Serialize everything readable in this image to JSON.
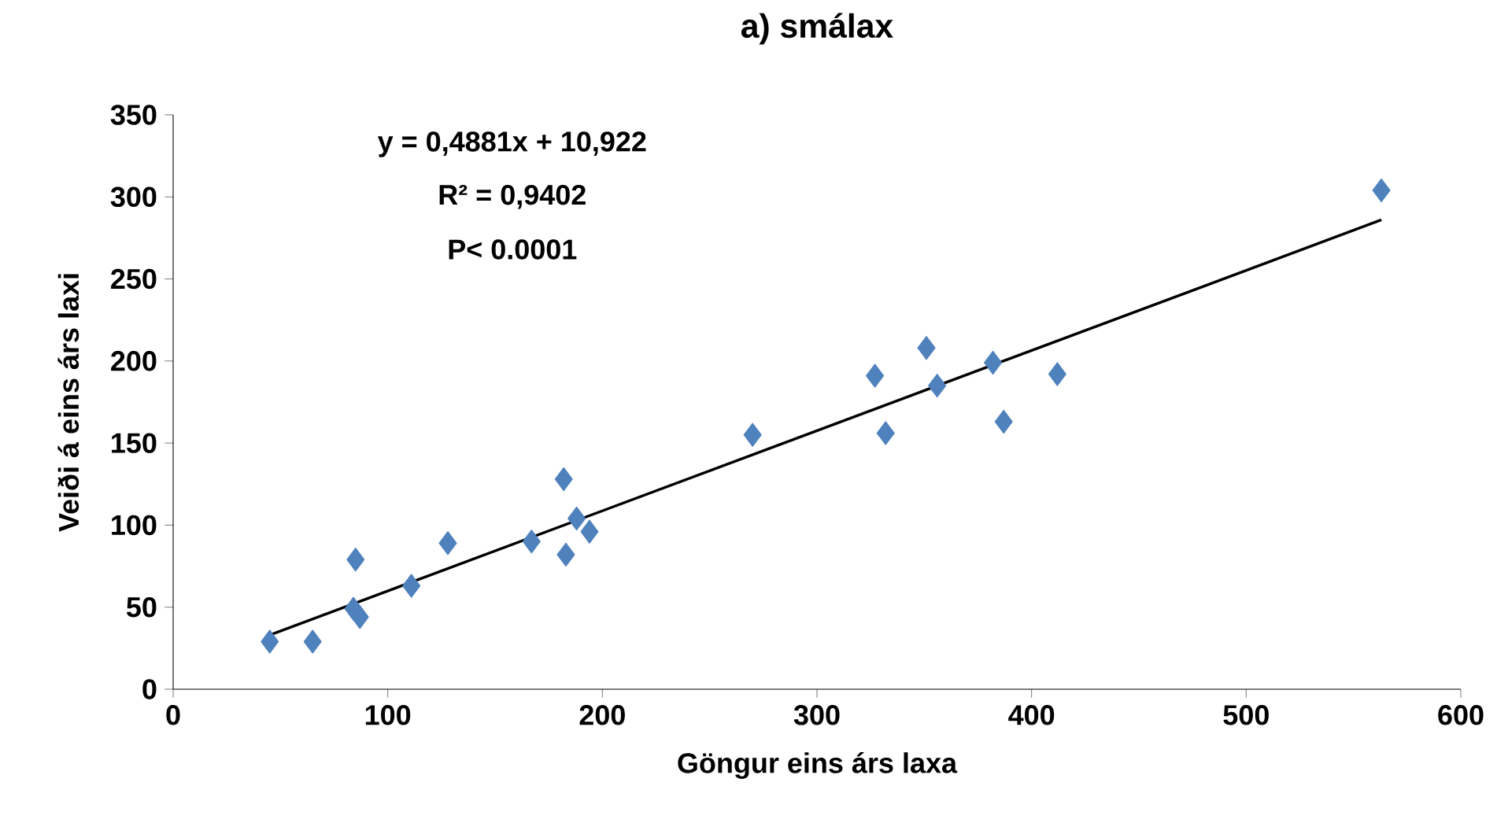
{
  "chart_data": {
    "type": "scatter",
    "title": "a) smálax",
    "xlabel": "Göngur eins árs laxa",
    "ylabel": "Veiði á eins árs laxi",
    "annotations": [
      "y = 0,4881x + 10,922",
      "R² = 0,9402",
      "P< 0.0001"
    ],
    "x": [
      45,
      65,
      84,
      87,
      85,
      111,
      128,
      167,
      182,
      183,
      188,
      194,
      270,
      327,
      332,
      351,
      356,
      382,
      387,
      412,
      563
    ],
    "series": [
      {
        "color": "#4f81bd",
        "values": [
          29,
          29,
          49,
          44,
          79,
          63,
          89,
          90,
          128,
          82,
          104,
          96,
          155,
          191,
          156,
          208,
          185,
          199,
          163,
          192,
          304
        ]
      },
      {
        "type": "line",
        "marker": "none",
        "color": "#000000",
        "x": [
          45,
          563
        ],
        "values": [
          33,
          286
        ]
      }
    ],
    "marker": "diamond",
    "grid": false,
    "xlim": [
      0,
      600
    ],
    "xticks": [
      0,
      100,
      200,
      300,
      400,
      500,
      600
    ],
    "ylim": [
      0,
      350
    ],
    "yticks": [
      0,
      50,
      100,
      150,
      200,
      250,
      300,
      350
    ]
  }
}
